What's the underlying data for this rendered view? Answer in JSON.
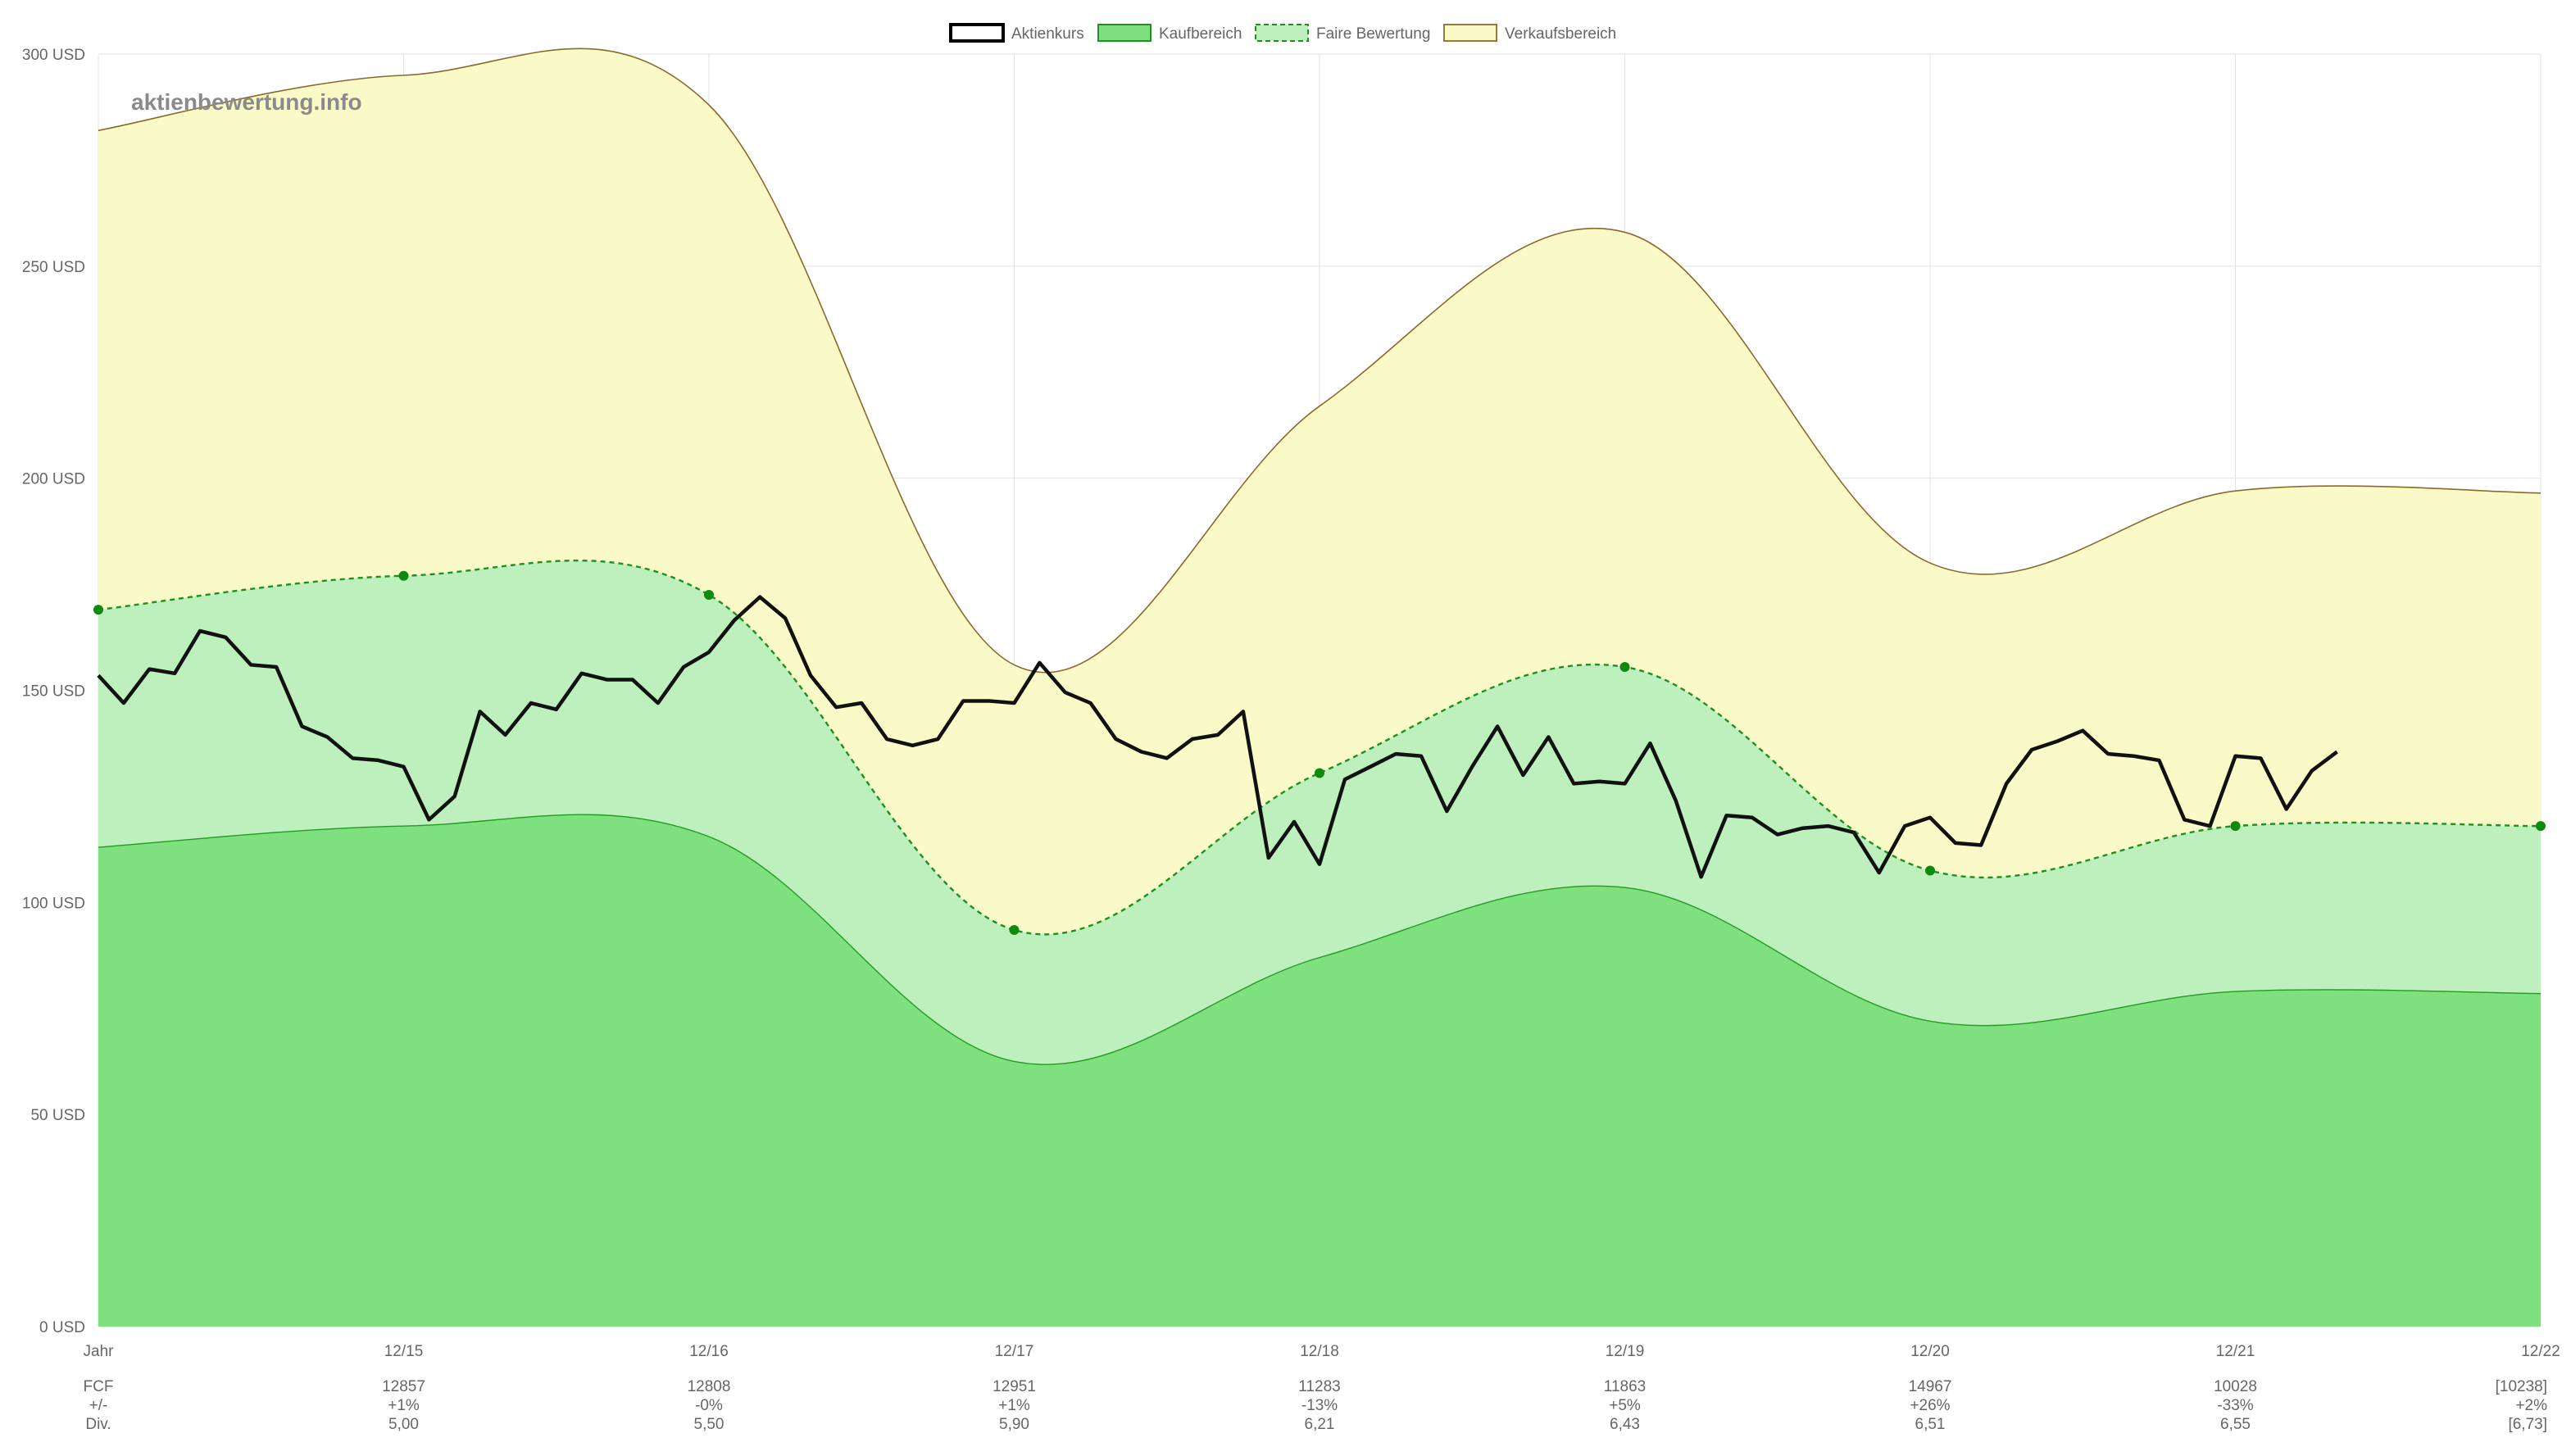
{
  "chart_data": {
    "type": "area",
    "watermark": "aktienbewertung.info",
    "ylim": [
      0,
      300
    ],
    "yticks": [
      0,
      50,
      100,
      150,
      200,
      250,
      300
    ],
    "ytick_labels": [
      "0 USD",
      "50 USD",
      "100 USD",
      "150 USD",
      "200 USD",
      "250 USD",
      "300 USD"
    ],
    "x_start": 14,
    "x_end": 22,
    "x_tick_positions": [
      14,
      15,
      16,
      17,
      18,
      19,
      20,
      21,
      22
    ],
    "x_tick_labels": [
      "Jahr",
      "12/15",
      "12/16",
      "12/17",
      "12/18",
      "12/19",
      "12/20",
      "12/21",
      "12/22"
    ],
    "legend": [
      {
        "key": "aktienkurs",
        "label": "Aktienkurs",
        "fill": "#ffffff",
        "stroke": "#000000",
        "dashed": false
      },
      {
        "key": "kaufbereich",
        "label": "Kaufbereich",
        "fill": "#7ee07e",
        "stroke": "#1f8f1f",
        "dashed": false
      },
      {
        "key": "faire",
        "label": "Faire Bewertung",
        "fill": "#bdf0bd",
        "stroke": "#1f8f1f",
        "dashed": true
      },
      {
        "key": "verkauf",
        "label": "Verkaufsbereich",
        "fill": "#fafac8",
        "stroke": "#9a7a30",
        "dashed": false
      }
    ],
    "colors": {
      "buy_fill": "#7ee07e",
      "buy_line": "#239b23",
      "fair_fill": "#bdf0bd",
      "fair_line": "#1f8f1f",
      "fair_point": "#0e8a0e",
      "sell_fill": "#fafac8",
      "sell_line": "#8a6a28",
      "price_line": "#111111",
      "grid": "#e2e2e2"
    },
    "series": [
      {
        "name": "Verkaufsbereich",
        "x": [
          14,
          15,
          16,
          17,
          18,
          19,
          20,
          21,
          22
        ],
        "values": [
          282,
          295,
          288,
          156,
          217,
          258,
          180,
          197,
          196.5
        ]
      },
      {
        "name": "Faire Bewertung",
        "x": [
          14,
          15,
          16,
          17,
          18,
          19,
          20,
          21,
          22
        ],
        "values": [
          169,
          177,
          172.5,
          93.5,
          130.5,
          155.5,
          107.5,
          118,
          118
        ]
      },
      {
        "name": "Kaufbereich",
        "x": [
          14,
          15,
          16,
          17,
          18,
          19,
          20,
          21,
          22
        ],
        "values": [
          113,
          118,
          115.5,
          62.5,
          87,
          103.5,
          72,
          79,
          78.5
        ]
      },
      {
        "name": "Aktienkurs",
        "x": [
          14,
          14.083,
          14.167,
          14.25,
          14.333,
          14.417,
          14.5,
          14.583,
          14.667,
          14.75,
          14.833,
          14.917,
          15,
          15.083,
          15.167,
          15.25,
          15.333,
          15.417,
          15.5,
          15.583,
          15.667,
          15.75,
          15.833,
          15.917,
          16,
          16.083,
          16.167,
          16.25,
          16.333,
          16.417,
          16.5,
          16.583,
          16.667,
          16.75,
          16.833,
          16.917,
          17,
          17.083,
          17.167,
          17.25,
          17.333,
          17.417,
          17.5,
          17.583,
          17.667,
          17.75,
          17.833,
          17.917,
          18,
          18.083,
          18.167,
          18.25,
          18.333,
          18.417,
          18.5,
          18.583,
          18.667,
          18.75,
          18.833,
          18.917,
          19,
          19.083,
          19.167,
          19.25,
          19.333,
          19.417,
          19.5,
          19.583,
          19.667,
          19.75,
          19.833,
          19.917,
          20,
          20.083,
          20.167,
          20.25,
          20.333,
          20.417,
          20.5,
          20.583,
          20.667,
          20.75,
          20.833,
          20.917,
          21,
          21.083,
          21.167,
          21.25,
          21.333
        ],
        "values": [
          153.5,
          147,
          155,
          154,
          164,
          162.5,
          156,
          155.5,
          141.5,
          139,
          134,
          133.5,
          132,
          119.5,
          125,
          145,
          139.5,
          147,
          145.5,
          154,
          152.5,
          152.5,
          147,
          155.5,
          159,
          166.5,
          172,
          167,
          153.5,
          146,
          147,
          138.5,
          137,
          138.5,
          147.5,
          147.5,
          147,
          156.5,
          149.5,
          147,
          138.5,
          135.5,
          134,
          138.5,
          139.5,
          145,
          110.5,
          119,
          109,
          129,
          132,
          135,
          134.5,
          121.5,
          132,
          141.5,
          130,
          139,
          128,
          128.5,
          128,
          137.5,
          124,
          106,
          120.5,
          120,
          116,
          117.5,
          118,
          116.5,
          107,
          118,
          120,
          114,
          113.5,
          128,
          136,
          138,
          140.5,
          135,
          134.5,
          133.5,
          119.5,
          118,
          134.5,
          134,
          122,
          131,
          135.5
        ]
      }
    ],
    "table": {
      "rows": [
        {
          "label": "FCF",
          "values": [
            "12857",
            "12808",
            "12951",
            "11283",
            "11863",
            "14967",
            "10028",
            "[10238]"
          ]
        },
        {
          "label": "+/-",
          "values": [
            "+1%",
            "-0%",
            "+1%",
            "-13%",
            "+5%",
            "+26%",
            "-33%",
            "+2%"
          ]
        },
        {
          "label": "Div.",
          "values": [
            "5,00",
            "5,50",
            "5,90",
            "6,21",
            "6,43",
            "6,51",
            "6,55",
            "[6,73]"
          ]
        }
      ]
    }
  }
}
